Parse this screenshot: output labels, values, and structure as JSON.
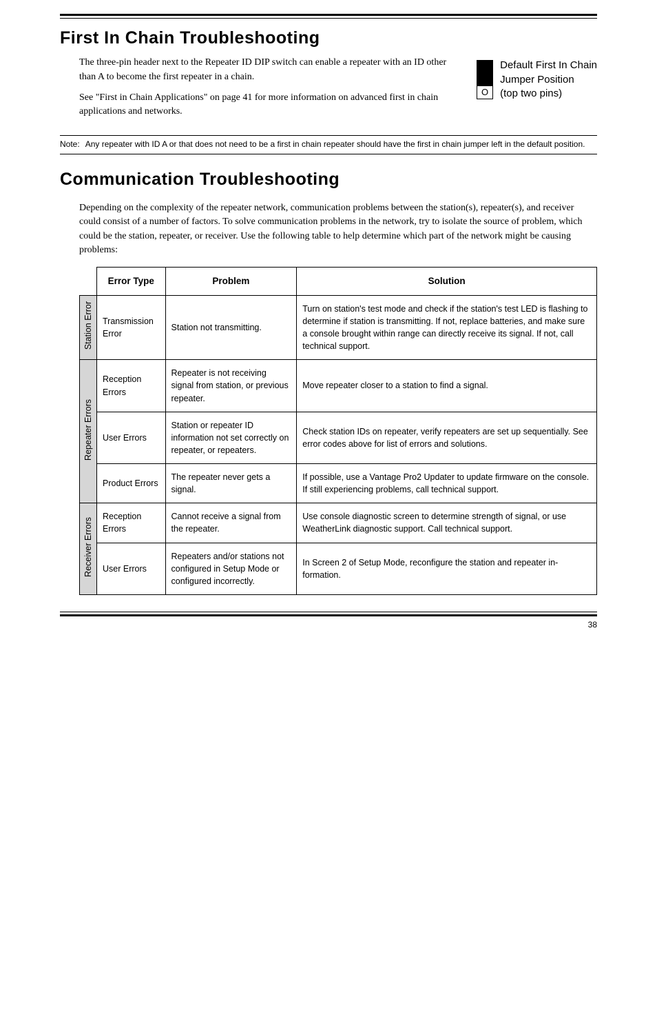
{
  "sections": {
    "first_in_chain": {
      "title": "First In Chain Troubleshooting",
      "p1": "The three-pin header next to the Repeater ID DIP switch can enable a repeater with an ID other than A to become the first repeater in a chain.",
      "p2": "See \"First in Chain Applications\" on page 41 for more information on advanced first in chain appli­cations and networks.",
      "jumper_caption_l1": "Default First In Chain",
      "jumper_caption_l2": "Jumper Position",
      "jumper_caption_l3": " (top two pins)",
      "open_glyph": "O"
    },
    "note": {
      "label": "Note:",
      "text": "Any repeater with ID A or that does not need to be a first in chain repeater should have the first in chain jumper left in the default position."
    },
    "comm": {
      "title": "Communication Troubleshooting",
      "intro": "Depending on the complexity of the repeater network, communication problems between the station(s), repeater(s), and receiver could consist of a number of factors. To solve communication problems in the network, try to isolate the source of problem, which could be the station, repeater, or receiver. Use the following table to help determine which part of the network might be causing problems:"
    }
  },
  "table": {
    "headers": {
      "error_type": "Error Type",
      "problem": "Problem",
      "solution": "Solution"
    },
    "groups": [
      {
        "label": "Station Error",
        "rows": [
          {
            "error_type": "Transmission Error",
            "problem": "Station not transmitting.",
            "solution": "Turn on station's test mode and check if the station's test LED is flashing to determine if station is transmitting. If not, replace batter­ies, and make sure a console brought within range can directly receive its signal. If not, call techni­cal support."
          }
        ]
      },
      {
        "label": "Repeater Errors",
        "rows": [
          {
            "error_type": "Reception Errors",
            "problem": "Repeater is not receiving signal from station, or previous repeater.",
            "solution": "Move repeater closer to a station to find a signal."
          },
          {
            "error_type": "User Errors",
            "problem": "Station or repeater ID information not set correctly on repeater, or repeaters.",
            "solution": "Check station IDs on repeater, ver­ify repeaters are set up sequential­ly. See error codes above for list of errors and solutions."
          },
          {
            "error_type": "Product Errors",
            "problem": "The repeater never gets a signal.",
            "solution": "If possible, use a Vantage Pro2 Up­dater to update firmware on the console. If still experiencing prob­lems, call technical support."
          }
        ]
      },
      {
        "label": "Receiver Errors",
        "rows": [
          {
            "error_type": "Reception Errors",
            "problem": "Cannot receive a signal from the repeater.",
            "solution": "Use console diagnostic screen to determine strength of signal, or use WeatherLink diagnostic support. Call technical support."
          },
          {
            "error_type": "User Errors",
            "problem": "Repeaters and/or stations not configured in Setup Mode or con­figured incorrectly.",
            "solution": "In Screen 2 of Setup Mode, recon­figure the station and repeater in­formation."
          }
        ]
      }
    ]
  },
  "page_number": "38"
}
